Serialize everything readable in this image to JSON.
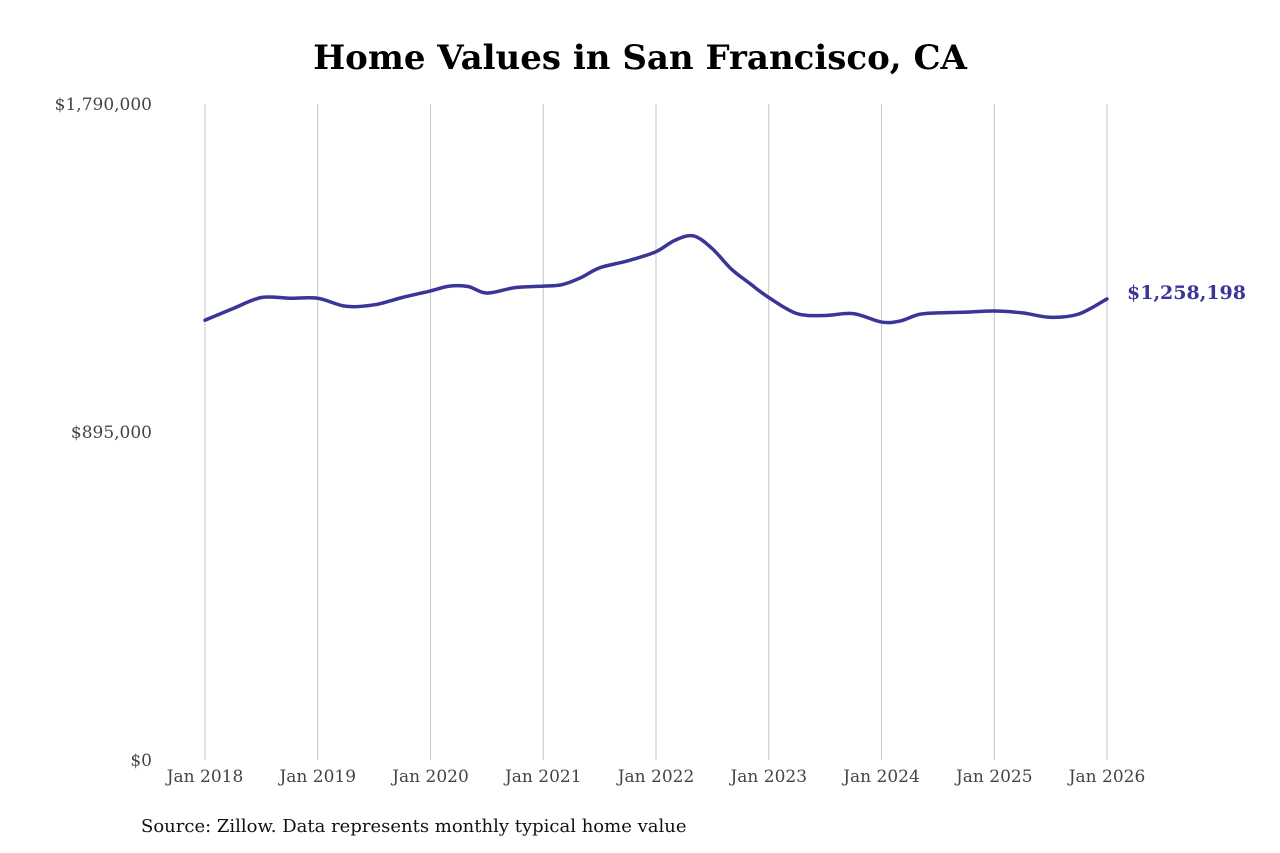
{
  "chart_data": {
    "type": "line",
    "title": "Home Values in San Francisco, CA",
    "xlabel": "",
    "ylabel": "",
    "ylim": [
      0,
      1790000
    ],
    "y_ticks": [
      0,
      895000,
      1790000
    ],
    "y_tick_labels": [
      "$0",
      "$895,000",
      "$1,790,000"
    ],
    "x_ticks": [
      "2018-01",
      "2019-01",
      "2020-01",
      "2021-01",
      "2022-01",
      "2023-01",
      "2024-01",
      "2025-01",
      "2026-01"
    ],
    "x_tick_labels": [
      "Jan 2018",
      "Jan 2019",
      "Jan 2020",
      "Jan 2021",
      "Jan 2022",
      "Jan 2023",
      "Jan 2024",
      "Jan 2025",
      "Jan 2026"
    ],
    "xlim": [
      "2018-01",
      "2026-01"
    ],
    "grid": "vertical",
    "legend": "none",
    "line_color": "#3a3596",
    "grid_color": "#c4c4c4",
    "series": [
      {
        "x": [
          "2018-01",
          "2018-04",
          "2018-07",
          "2018-10",
          "2019-01",
          "2019-04",
          "2019-07",
          "2019-10",
          "2020-01",
          "2020-03",
          "2020-05",
          "2020-07",
          "2020-10",
          "2021-01",
          "2021-03",
          "2021-05",
          "2021-07",
          "2021-10",
          "2022-01",
          "2022-03",
          "2022-05",
          "2022-07",
          "2022-09",
          "2022-11",
          "2023-01",
          "2023-04",
          "2023-07",
          "2023-10",
          "2024-01",
          "2024-03",
          "2024-05",
          "2024-07",
          "2024-10",
          "2025-01",
          "2025-04",
          "2025-07",
          "2025-10",
          "2026-01"
        ],
        "values": [
          1200000,
          1232000,
          1262000,
          1260000,
          1260000,
          1238000,
          1242000,
          1262000,
          1280000,
          1293000,
          1292000,
          1274000,
          1289000,
          1293000,
          1297000,
          1316000,
          1343000,
          1362000,
          1387000,
          1418000,
          1430000,
          1395000,
          1340000,
          1300000,
          1262000,
          1218000,
          1213000,
          1218000,
          1195000,
          1198000,
          1216000,
          1220000,
          1222000,
          1225000,
          1220000,
          1208000,
          1217000,
          1258198
        ]
      }
    ],
    "end_value_label": "$1,258,198"
  },
  "source_text": "Source: Zillow. Data represents monthly typical home value"
}
